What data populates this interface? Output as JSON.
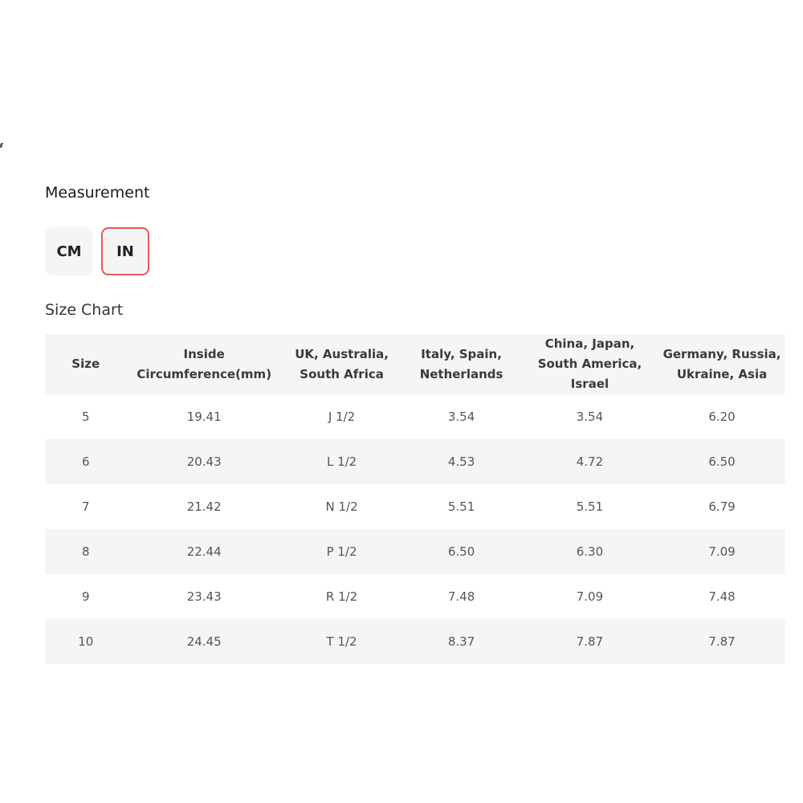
{
  "measurement": {
    "title": "Measurement",
    "options": [
      "CM",
      "IN"
    ],
    "selected": "IN",
    "accent": "#e05a5a"
  },
  "size_chart": {
    "title": "Size Chart",
    "headers": [
      "Size",
      "Inside Circumference(mm)",
      "UK, Australia, South Africa",
      "Italy, Spain, Netherlands",
      "China, Japan, South America, Israel",
      "Germany, Russia, Ukraine, Asia"
    ],
    "rows": [
      [
        "5",
        "19.41",
        "J 1/2",
        "3.54",
        "3.54",
        "6.20"
      ],
      [
        "6",
        "20.43",
        "L 1/2",
        "4.53",
        "4.72",
        "6.50"
      ],
      [
        "7",
        "21.42",
        "N 1/2",
        "5.51",
        "5.51",
        "6.79"
      ],
      [
        "8",
        "22.44",
        "P 1/2",
        "6.50",
        "6.30",
        "7.09"
      ],
      [
        "9",
        "23.43",
        "R 1/2",
        "7.48",
        "7.09",
        "7.48"
      ],
      [
        "10",
        "24.45",
        "T 1/2",
        "8.37",
        "7.87",
        "7.87"
      ]
    ]
  }
}
